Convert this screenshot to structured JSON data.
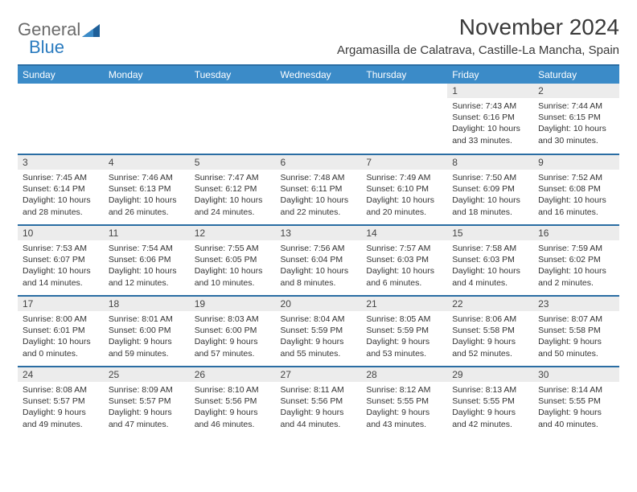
{
  "logo": {
    "general": "General",
    "blue": "Blue"
  },
  "title": "November 2024",
  "location": "Argamasilla de Calatrava, Castille-La Mancha, Spain",
  "colors": {
    "header_bg": "#3b8bc8",
    "header_border": "#2a6da3",
    "daynum_bg": "#ececec",
    "logo_gray": "#6b6b6b",
    "logo_blue": "#2a7bbf"
  },
  "typography": {
    "month_title_size": 28,
    "location_size": 15,
    "header_cell_size": 12,
    "body_size": 10.5
  },
  "days_of_week": [
    "Sunday",
    "Monday",
    "Tuesday",
    "Wednesday",
    "Thursday",
    "Friday",
    "Saturday"
  ],
  "grid": [
    [
      null,
      null,
      null,
      null,
      null,
      {
        "n": "1",
        "sr": "Sunrise: 7:43 AM",
        "ss": "Sunset: 6:16 PM",
        "d1": "Daylight: 10 hours",
        "d2": "and 33 minutes."
      },
      {
        "n": "2",
        "sr": "Sunrise: 7:44 AM",
        "ss": "Sunset: 6:15 PM",
        "d1": "Daylight: 10 hours",
        "d2": "and 30 minutes."
      }
    ],
    [
      {
        "n": "3",
        "sr": "Sunrise: 7:45 AM",
        "ss": "Sunset: 6:14 PM",
        "d1": "Daylight: 10 hours",
        "d2": "and 28 minutes."
      },
      {
        "n": "4",
        "sr": "Sunrise: 7:46 AM",
        "ss": "Sunset: 6:13 PM",
        "d1": "Daylight: 10 hours",
        "d2": "and 26 minutes."
      },
      {
        "n": "5",
        "sr": "Sunrise: 7:47 AM",
        "ss": "Sunset: 6:12 PM",
        "d1": "Daylight: 10 hours",
        "d2": "and 24 minutes."
      },
      {
        "n": "6",
        "sr": "Sunrise: 7:48 AM",
        "ss": "Sunset: 6:11 PM",
        "d1": "Daylight: 10 hours",
        "d2": "and 22 minutes."
      },
      {
        "n": "7",
        "sr": "Sunrise: 7:49 AM",
        "ss": "Sunset: 6:10 PM",
        "d1": "Daylight: 10 hours",
        "d2": "and 20 minutes."
      },
      {
        "n": "8",
        "sr": "Sunrise: 7:50 AM",
        "ss": "Sunset: 6:09 PM",
        "d1": "Daylight: 10 hours",
        "d2": "and 18 minutes."
      },
      {
        "n": "9",
        "sr": "Sunrise: 7:52 AM",
        "ss": "Sunset: 6:08 PM",
        "d1": "Daylight: 10 hours",
        "d2": "and 16 minutes."
      }
    ],
    [
      {
        "n": "10",
        "sr": "Sunrise: 7:53 AM",
        "ss": "Sunset: 6:07 PM",
        "d1": "Daylight: 10 hours",
        "d2": "and 14 minutes."
      },
      {
        "n": "11",
        "sr": "Sunrise: 7:54 AM",
        "ss": "Sunset: 6:06 PM",
        "d1": "Daylight: 10 hours",
        "d2": "and 12 minutes."
      },
      {
        "n": "12",
        "sr": "Sunrise: 7:55 AM",
        "ss": "Sunset: 6:05 PM",
        "d1": "Daylight: 10 hours",
        "d2": "and 10 minutes."
      },
      {
        "n": "13",
        "sr": "Sunrise: 7:56 AM",
        "ss": "Sunset: 6:04 PM",
        "d1": "Daylight: 10 hours",
        "d2": "and 8 minutes."
      },
      {
        "n": "14",
        "sr": "Sunrise: 7:57 AM",
        "ss": "Sunset: 6:03 PM",
        "d1": "Daylight: 10 hours",
        "d2": "and 6 minutes."
      },
      {
        "n": "15",
        "sr": "Sunrise: 7:58 AM",
        "ss": "Sunset: 6:03 PM",
        "d1": "Daylight: 10 hours",
        "d2": "and 4 minutes."
      },
      {
        "n": "16",
        "sr": "Sunrise: 7:59 AM",
        "ss": "Sunset: 6:02 PM",
        "d1": "Daylight: 10 hours",
        "d2": "and 2 minutes."
      }
    ],
    [
      {
        "n": "17",
        "sr": "Sunrise: 8:00 AM",
        "ss": "Sunset: 6:01 PM",
        "d1": "Daylight: 10 hours",
        "d2": "and 0 minutes."
      },
      {
        "n": "18",
        "sr": "Sunrise: 8:01 AM",
        "ss": "Sunset: 6:00 PM",
        "d1": "Daylight: 9 hours",
        "d2": "and 59 minutes."
      },
      {
        "n": "19",
        "sr": "Sunrise: 8:03 AM",
        "ss": "Sunset: 6:00 PM",
        "d1": "Daylight: 9 hours",
        "d2": "and 57 minutes."
      },
      {
        "n": "20",
        "sr": "Sunrise: 8:04 AM",
        "ss": "Sunset: 5:59 PM",
        "d1": "Daylight: 9 hours",
        "d2": "and 55 minutes."
      },
      {
        "n": "21",
        "sr": "Sunrise: 8:05 AM",
        "ss": "Sunset: 5:59 PM",
        "d1": "Daylight: 9 hours",
        "d2": "and 53 minutes."
      },
      {
        "n": "22",
        "sr": "Sunrise: 8:06 AM",
        "ss": "Sunset: 5:58 PM",
        "d1": "Daylight: 9 hours",
        "d2": "and 52 minutes."
      },
      {
        "n": "23",
        "sr": "Sunrise: 8:07 AM",
        "ss": "Sunset: 5:58 PM",
        "d1": "Daylight: 9 hours",
        "d2": "and 50 minutes."
      }
    ],
    [
      {
        "n": "24",
        "sr": "Sunrise: 8:08 AM",
        "ss": "Sunset: 5:57 PM",
        "d1": "Daylight: 9 hours",
        "d2": "and 49 minutes."
      },
      {
        "n": "25",
        "sr": "Sunrise: 8:09 AM",
        "ss": "Sunset: 5:57 PM",
        "d1": "Daylight: 9 hours",
        "d2": "and 47 minutes."
      },
      {
        "n": "26",
        "sr": "Sunrise: 8:10 AM",
        "ss": "Sunset: 5:56 PM",
        "d1": "Daylight: 9 hours",
        "d2": "and 46 minutes."
      },
      {
        "n": "27",
        "sr": "Sunrise: 8:11 AM",
        "ss": "Sunset: 5:56 PM",
        "d1": "Daylight: 9 hours",
        "d2": "and 44 minutes."
      },
      {
        "n": "28",
        "sr": "Sunrise: 8:12 AM",
        "ss": "Sunset: 5:55 PM",
        "d1": "Daylight: 9 hours",
        "d2": "and 43 minutes."
      },
      {
        "n": "29",
        "sr": "Sunrise: 8:13 AM",
        "ss": "Sunset: 5:55 PM",
        "d1": "Daylight: 9 hours",
        "d2": "and 42 minutes."
      },
      {
        "n": "30",
        "sr": "Sunrise: 8:14 AM",
        "ss": "Sunset: 5:55 PM",
        "d1": "Daylight: 9 hours",
        "d2": "and 40 minutes."
      }
    ]
  ]
}
